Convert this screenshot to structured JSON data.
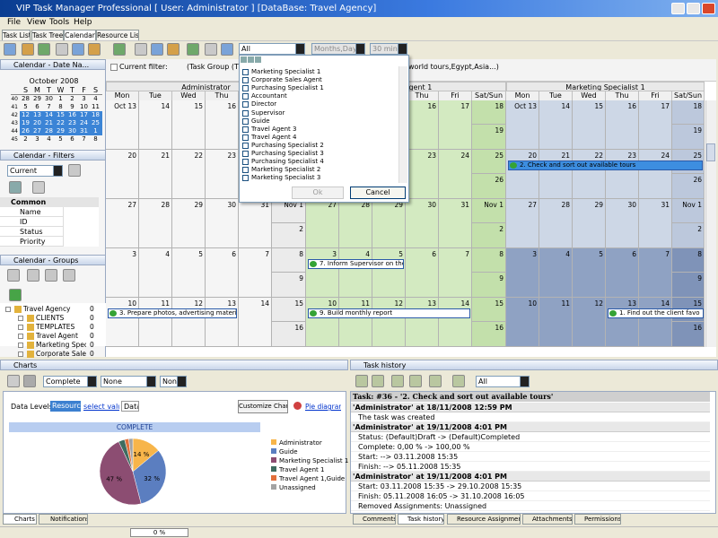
{
  "window": {
    "title": "VIP Task Manager Professional [ User: Administrator ] [DataBase: Travel Agency]"
  },
  "menu": [
    "File",
    "View",
    "Tools",
    "Help"
  ],
  "tabs": [
    "Task List",
    "Task Tree",
    "Calendar",
    "Resource List"
  ],
  "toolbar": {
    "resource_filter": "All",
    "scale": "Months,Days",
    "interval": "30 min"
  },
  "left": {
    "date_nav": {
      "title": "Calendar - Date Na...",
      "month": "October 2008",
      "day_letters": [
        "S",
        "M",
        "T",
        "W",
        "T",
        "F",
        "S"
      ],
      "weeks": [
        {
          "number": 40,
          "days": [
            28,
            29,
            30,
            1,
            2,
            3,
            4
          ]
        },
        {
          "number": 41,
          "days": [
            5,
            6,
            7,
            8,
            9,
            10,
            11
          ]
        },
        {
          "number": 42,
          "days": [
            12,
            13,
            14,
            15,
            16,
            17,
            18
          ]
        },
        {
          "number": 43,
          "days": [
            19,
            20,
            21,
            22,
            23,
            24,
            25
          ]
        },
        {
          "number": 44,
          "days": [
            26,
            27,
            28,
            29,
            30,
            31,
            1
          ]
        },
        {
          "number": 45,
          "days": [
            2,
            3,
            4,
            5,
            6,
            7,
            8
          ]
        }
      ]
    },
    "filters": {
      "title": "Calendar - Filters",
      "current": "Current",
      "section": "Common",
      "fields": [
        "Name",
        "ID",
        "Status",
        "Priority"
      ]
    },
    "groups": {
      "title": "Calendar - Groups",
      "tree": [
        {
          "label": "Travel Agency",
          "count": 0
        },
        {
          "label": "CLIENTS",
          "count": 0
        },
        {
          "label": "TEMPLATES",
          "count": 0
        },
        {
          "label": "Travel Agent",
          "count": 0
        },
        {
          "label": "Marketing Spec",
          "count": 0
        },
        {
          "label": "Corporate Sales",
          "count": 0
        }
      ]
    }
  },
  "calendar": {
    "filter_label": "Current filter:",
    "filter_text": "(Task Group (TOU",
    "filter_text_end": "world tours,Egypt,Asia...)",
    "resources": [
      "Administrator",
      "Travel Agent 1",
      "Marketing Specialist 1"
    ],
    "day_names": [
      "Mon",
      "Tue",
      "Wed",
      "Thu",
      "Fri",
      "Sat/Sun"
    ],
    "weeks": [
      [
        "Oct 13",
        "14",
        "15",
        "16",
        "17",
        "18",
        "19"
      ],
      [
        "20",
        "21",
        "22",
        "23",
        "24",
        "25",
        "26"
      ],
      [
        "27",
        "28",
        "29",
        "30",
        "31",
        "Nov 1",
        "2"
      ],
      [
        "3",
        "4",
        "5",
        "6",
        "7",
        "8",
        "9"
      ],
      [
        "10",
        "11",
        "12",
        "13",
        "14",
        "15",
        "16"
      ]
    ],
    "events": [
      "2. Check and sort out available tours",
      "7. Inform Supervisor on the",
      "9. Build monthly report",
      "3. Prepare photos, advertising materials for th",
      "1. Find out the client favo"
    ]
  },
  "resource_dropdown": {
    "items": [
      "Marketing Specialist 1",
      "Corporate Sales Agent",
      "Purchasing Specialist 1",
      "Accountant",
      "Director",
      "Supervisor",
      "Guide",
      "Travel Agent 3",
      "Travel Agent 4",
      "Purchasing Specialist 2",
      "Purchasing Specialist 3",
      "Purchasing Specialist 4",
      "Marketing Specialist 2",
      "Marketing Specialist 3"
    ],
    "ok": "Ok",
    "cancel": "Cancel"
  },
  "charts": {
    "title": "Charts",
    "measure": "Complete",
    "group": "None",
    "group2": "Non",
    "data_levels": "Data Levels:",
    "level": "Resource",
    "select": "select value",
    "data": "Data",
    "customize": "Customize Chart",
    "diagram": "Pie diagram",
    "chart_title": "COMPLETE",
    "slices": [
      {
        "name": "Administrator",
        "color": "#f7b54a",
        "value": 14,
        "label": "14 %"
      },
      {
        "name": "Guide",
        "color": "#5b7ec0",
        "value": 32,
        "label": "32 %"
      },
      {
        "name": "Marketing Specialist 1",
        "color": "#8c4d72",
        "value": 47,
        "label": "47 %"
      },
      {
        "name": "Travel Agent 1",
        "color": "#3e6c60",
        "value": 3
      },
      {
        "name": "Travel Agent 1,Guide",
        "color": "#e2703b",
        "value": 2
      },
      {
        "name": "Unassigned",
        "color": "#a3a3a3",
        "value": 2
      }
    ],
    "tabs": [
      "Charts",
      "Notifications"
    ]
  },
  "history": {
    "title": "Task history",
    "filter": "All",
    "task": "Task: #36 - '2. Check and sort out available tours'",
    "entries": [
      {
        "header": "'Administrator' at 18/11/2008 12:59 PM",
        "lines": [
          "The task was created"
        ]
      },
      {
        "header": "'Administrator' at 19/11/2008 4:01 PM",
        "lines": [
          "Status: (Default)Draft -> (Default)Completed",
          "Complete: 0,00 % -> 100,00 %",
          "Start: --> 03.11.2008 15:35",
          "Finish: --> 05.11.2008 15:35"
        ]
      },
      {
        "header": "'Administrator' at 19/11/2008 4:01 PM",
        "lines": [
          "Start: 03.11.2008 15:35 -> 29.10.2008 15:35",
          "Finish: 05.11.2008 16:05 -> 31.10.2008 16:05",
          "Removed Assignments: Unassigned"
        ]
      }
    ],
    "tabs": [
      "Comments",
      "Task history",
      "Resource Assignment",
      "Attachments",
      "Permissions"
    ]
  },
  "status": {
    "progress": "0 %"
  }
}
